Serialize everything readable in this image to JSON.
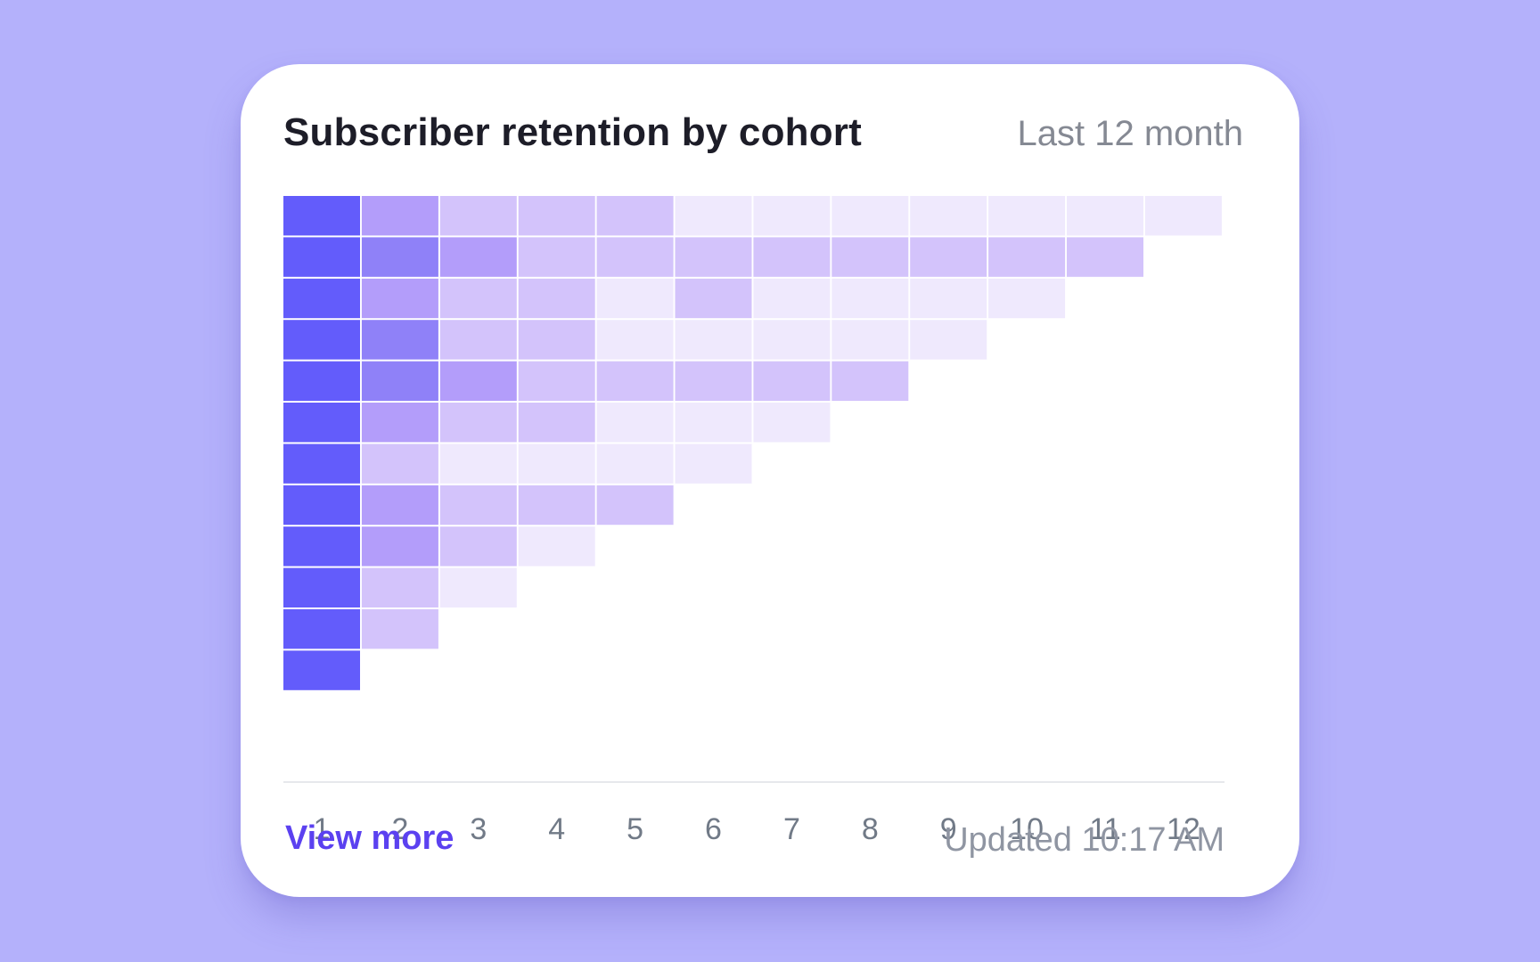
{
  "card": {
    "title": "Subscriber retention by cohort",
    "period": "Last 12 month",
    "view_more_label": "View more",
    "updated_text": "Updated 10:17 AM"
  },
  "colors": {
    "background": "#b4b1fb",
    "link": "#5b41f0",
    "scale": [
      "#efe9fd",
      "#d3c3fb",
      "#b39dfa",
      "#8f81f8",
      "#635cfb"
    ]
  },
  "chart_data": {
    "type": "heatmap",
    "title": "Subscriber retention by cohort",
    "x": [
      1,
      2,
      3,
      4,
      5,
      6,
      7,
      8,
      9,
      10,
      11,
      12
    ],
    "xlabel": "",
    "ylabel": "",
    "levels": 5,
    "rows": [
      [
        5,
        3,
        2,
        2,
        2,
        1,
        1,
        1,
        1,
        1,
        1,
        1
      ],
      [
        5,
        4,
        3,
        2,
        2,
        2,
        2,
        2,
        2,
        2,
        2
      ],
      [
        5,
        3,
        2,
        2,
        1,
        2,
        1,
        1,
        1,
        1
      ],
      [
        5,
        4,
        2,
        2,
        1,
        1,
        1,
        1,
        1
      ],
      [
        5,
        4,
        3,
        2,
        2,
        2,
        2,
        2
      ],
      [
        5,
        3,
        2,
        2,
        1,
        1,
        1
      ],
      [
        5,
        2,
        1,
        1,
        1,
        1
      ],
      [
        5,
        3,
        2,
        2,
        2
      ],
      [
        5,
        3,
        2,
        1
      ],
      [
        5,
        2,
        1
      ],
      [
        5,
        2
      ],
      [
        5
      ]
    ]
  }
}
